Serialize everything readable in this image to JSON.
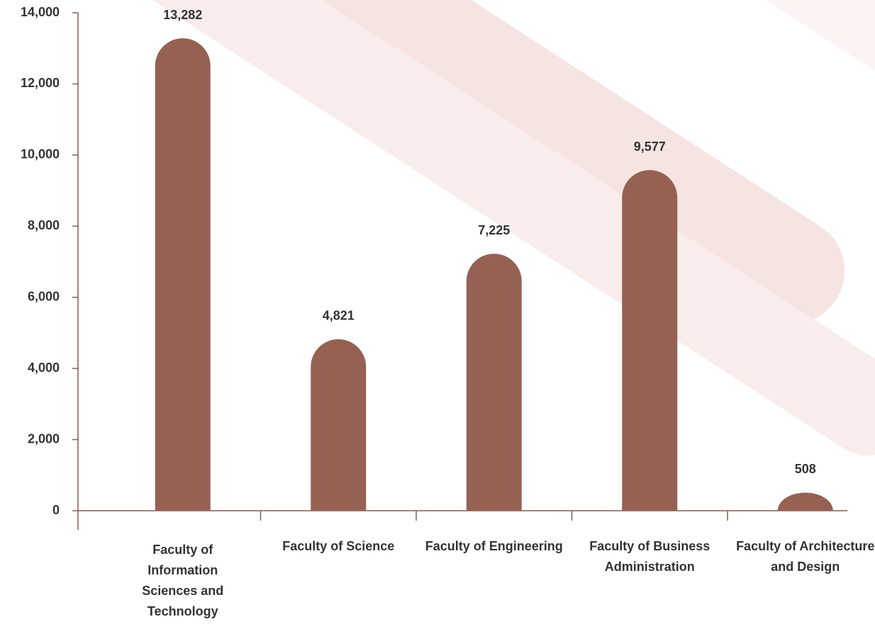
{
  "chart_data": {
    "type": "bar",
    "categories": [
      "Faculty of Information Sciences and Technology",
      "Faculty of Science",
      "Faculty of Engineering",
      "Faculty of Business Administration",
      "Faculty of Architecture and Design"
    ],
    "values": [
      13282,
      4821,
      7225,
      9577,
      508
    ],
    "value_labels": [
      "13,282",
      "4,821",
      "7,225",
      "9,577",
      "508"
    ],
    "color": "#956153",
    "ylim": [
      0,
      14000
    ],
    "yticks": [
      0,
      {
        "value": 2000,
        "label": "2,000"
      },
      {
        "value": 4000,
        "label": "4,000"
      },
      {
        "value": 6000,
        "label": "6,000"
      },
      {
        "value": 8000,
        "label": "8,000"
      },
      {
        "value": 10000,
        "label": "10,000"
      },
      {
        "value": 12000,
        "label": "12,000"
      },
      {
        "value": 14000,
        "label": "14,000"
      }
    ]
  }
}
